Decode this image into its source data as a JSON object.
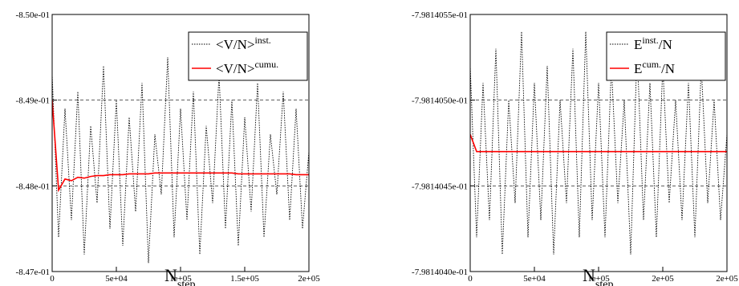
{
  "chart_data": [
    {
      "type": "line",
      "xlabel": [
        "N",
        "step"
      ],
      "x": [
        0,
        5000,
        10000,
        15000,
        20000,
        25000,
        30000,
        35000,
        40000,
        45000,
        50000,
        55000,
        60000,
        65000,
        70000,
        75000,
        80000,
        85000,
        90000,
        95000,
        100000,
        105000,
        110000,
        115000,
        120000,
        125000,
        130000,
        135000,
        140000,
        145000,
        150000,
        155000,
        160000,
        165000,
        170000,
        175000,
        180000,
        185000,
        190000,
        195000,
        200000
      ],
      "xlim": [
        0,
        200000
      ],
      "xticks": [
        0,
        {
          "value": 50000,
          "label": "5e+04"
        },
        {
          "value": 100000,
          "label": "1e+05"
        },
        {
          "value": 150000,
          "label": "1.5e+05"
        },
        {
          "value": 200000,
          "label": "2e+05"
        }
      ],
      "ylim": [
        -0.847,
        -0.85
      ],
      "yticks": [
        {
          "value": -0.85,
          "label": "-8.50e-01"
        },
        {
          "value": -0.849,
          "label": "-8.49e-01"
        },
        {
          "value": -0.848,
          "label": "-8.48e-01"
        },
        {
          "value": -0.847,
          "label": "-8.47e-01"
        }
      ],
      "grid": true,
      "legend": "top right",
      "series": [
        {
          "name": [
            "<V/N>",
            "inst."
          ],
          "color": "#000000",
          "values": [
            -0.8493,
            -0.8474,
            -0.8489,
            -0.8476,
            -0.8491,
            -0.8472,
            -0.8487,
            -0.8478,
            -0.8494,
            -0.8475,
            -0.849,
            -0.8473,
            -0.8488,
            -0.8477,
            -0.8492,
            -0.8471,
            -0.8486,
            -0.8479,
            -0.8495,
            -0.8474,
            -0.8489,
            -0.8476,
            -0.8491,
            -0.8472,
            -0.8487,
            -0.8478,
            -0.8493,
            -0.8475,
            -0.849,
            -0.8473,
            -0.8488,
            -0.8477,
            -0.8492,
            -0.8474,
            -0.8486,
            -0.8479,
            -0.8491,
            -0.8476,
            -0.8489,
            -0.8475,
            -0.8484
          ]
        },
        {
          "name": [
            "<V/N>",
            "cumu."
          ],
          "color": "#ff0000",
          "values": [
            -0.849,
            -0.84795,
            -0.84808,
            -0.84806,
            -0.8481,
            -0.84809,
            -0.84811,
            -0.84812,
            -0.84812,
            -0.84813,
            -0.84813,
            -0.84813,
            -0.84814,
            -0.84814,
            -0.84814,
            -0.84814,
            -0.84815,
            -0.84815,
            -0.84815,
            -0.84815,
            -0.84815,
            -0.84815,
            -0.84815,
            -0.84815,
            -0.84815,
            -0.84815,
            -0.84815,
            -0.84815,
            -0.84815,
            -0.84814,
            -0.84814,
            -0.84814,
            -0.84814,
            -0.84814,
            -0.84814,
            -0.84814,
            -0.84814,
            -0.84814,
            -0.84813,
            -0.84813,
            -0.84813
          ]
        }
      ]
    },
    {
      "type": "line",
      "xlabel": [
        "N",
        "step"
      ],
      "x": [
        0,
        5000,
        10000,
        15000,
        20000,
        25000,
        30000,
        35000,
        40000,
        45000,
        50000,
        55000,
        60000,
        65000,
        70000,
        75000,
        80000,
        85000,
        90000,
        95000,
        100000,
        105000,
        110000,
        115000,
        120000,
        125000,
        130000,
        135000,
        140000,
        145000,
        150000,
        155000,
        160000,
        165000,
        170000,
        175000,
        180000,
        185000,
        190000,
        195000,
        200000
      ],
      "xlim": [
        0,
        200000
      ],
      "xticks": [
        0,
        {
          "value": 50000,
          "label": "5e+04"
        },
        {
          "value": 100000,
          "label": "1e+05"
        },
        {
          "value": 150000,
          "label": "2e+05"
        },
        {
          "value": 200000,
          "label": "2e+05"
        }
      ],
      "ylim": [
        -0.7981404,
        -0.79814055
      ],
      "yticks": [
        {
          "value": -0.79814055,
          "label": "-7.9814055e-01"
        },
        {
          "value": -0.7981405,
          "label": "-7.9814050e-01"
        },
        {
          "value": -0.79814045,
          "label": "-7.9814045e-01"
        },
        {
          "value": -0.7981404,
          "label": "-7.9814040e-01"
        }
      ],
      "grid": true,
      "legend": "top right",
      "series": [
        {
          "name": [
            "E",
            "inst.",
            "/N"
          ],
          "color": "#000000",
          "values": [
            -0.79814052,
            -0.79814042,
            -0.79814051,
            -0.79814043,
            -0.79814053,
            -0.79814041,
            -0.7981405,
            -0.79814044,
            -0.79814054,
            -0.79814042,
            -0.79814051,
            -0.79814043,
            -0.79814052,
            -0.79814041,
            -0.7981405,
            -0.79814044,
            -0.79814053,
            -0.79814042,
            -0.79814054,
            -0.79814043,
            -0.79814051,
            -0.79814042,
            -0.79814052,
            -0.79814044,
            -0.7981405,
            -0.79814041,
            -0.79814053,
            -0.79814043,
            -0.79814051,
            -0.79814042,
            -0.79814052,
            -0.79814044,
            -0.7981405,
            -0.79814043,
            -0.79814051,
            -0.79814042,
            -0.79814052,
            -0.79814044,
            -0.7981405,
            -0.79814043,
            -0.79814048
          ]
        },
        {
          "name": [
            "E",
            "cum.",
            "/N"
          ],
          "color": "#ff0000",
          "values": [
            -0.79814048,
            -0.79814047,
            -0.79814047,
            -0.79814047,
            -0.79814047,
            -0.79814047,
            -0.79814047,
            -0.79814047,
            -0.79814047,
            -0.79814047,
            -0.79814047,
            -0.79814047,
            -0.79814047,
            -0.79814047,
            -0.79814047,
            -0.79814047,
            -0.79814047,
            -0.79814047,
            -0.79814047,
            -0.79814047,
            -0.79814047,
            -0.79814047,
            -0.79814047,
            -0.79814047,
            -0.79814047,
            -0.79814047,
            -0.79814047,
            -0.79814047,
            -0.79814047,
            -0.79814047,
            -0.79814047,
            -0.79814047,
            -0.79814047,
            -0.79814047,
            -0.79814047,
            -0.79814047,
            -0.79814047,
            -0.79814047,
            -0.79814047,
            -0.79814047,
            -0.79814047
          ]
        }
      ]
    }
  ]
}
